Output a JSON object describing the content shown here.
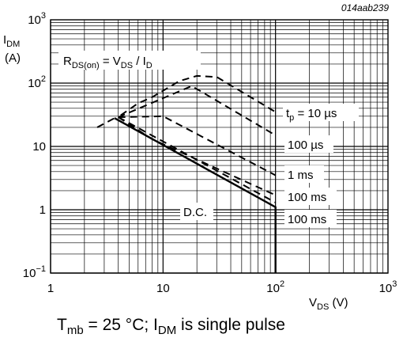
{
  "chart_data": {
    "type": "line",
    "figure_id": "014aab239",
    "xscale": "log",
    "yscale": "log",
    "xlim": [
      1,
      1000
    ],
    "ylim": [
      0.1,
      1000
    ],
    "x_ticks": [
      "1",
      "10",
      "10²",
      "10³"
    ],
    "y_ticks": [
      "10⁻¹",
      "1",
      "10",
      "10²",
      "10³"
    ],
    "x_tick_values": [
      1,
      10,
      100,
      1000
    ],
    "y_tick_values": [
      0.1,
      1,
      10,
      100,
      1000
    ],
    "ylabel_main": "I",
    "ylabel_sub": "DM",
    "ylabel_unit": "(A)",
    "xlabel_main": "V",
    "xlabel_sub": "DS",
    "xlabel_unit": " (V)",
    "grid": true,
    "rds_label": {
      "a": "R",
      "a_sub": "DS(on)",
      "b": " = V",
      "b_sub": "DS",
      "c": " / I",
      "c_sub": "D"
    },
    "rds_limit": [
      [
        2.6,
        20
      ],
      [
        3.7,
        28
      ]
    ],
    "series": [
      {
        "name": "tp = 10 µs",
        "style": "dashed",
        "points": [
          [
            4.2,
            31
          ],
          [
            6,
            48
          ],
          [
            8,
            60
          ],
          [
            14,
            108
          ],
          [
            20,
            130
          ],
          [
            30,
            125
          ],
          [
            100,
            35
          ]
        ]
      },
      {
        "name": "100 µs",
        "style": "dashed",
        "points": [
          [
            4,
            29
          ],
          [
            18,
            90
          ],
          [
            100,
            15
          ]
        ]
      },
      {
        "name": "1 ms",
        "style": "dashed",
        "points": [
          [
            4,
            29
          ],
          [
            10,
            30
          ],
          [
            100,
            3.5
          ]
        ]
      },
      {
        "name": "100 ms",
        "style": "dashed",
        "points": [
          [
            4,
            29
          ],
          [
            8,
            13
          ],
          [
            100,
            1.7
          ]
        ]
      },
      {
        "name": "100 ms",
        "style": "dashed",
        "points": [
          [
            4,
            29
          ],
          [
            100,
            1.3
          ]
        ]
      },
      {
        "name": "D.C.",
        "style": "solid",
        "points": [
          [
            3.7,
            28
          ],
          [
            100,
            1.1
          ],
          [
            100,
            0.1
          ]
        ]
      }
    ],
    "labels": [
      {
        "text_main": "t",
        "text_sub": "p",
        "text_rest": " = 10 µs",
        "series": 0
      },
      {
        "text_main": "100 µs",
        "series": 1
      },
      {
        "text_main": "1 ms",
        "series": 2
      },
      {
        "text_main": "100 ms",
        "series": 3
      },
      {
        "text_main": "100 ms",
        "series": 4
      },
      {
        "text_main": "D.C.",
        "series": 5
      }
    ]
  },
  "caption": {
    "t": "T",
    "t_sub": "mb",
    "mid": " = 25 °C; I",
    "i_sub": "DM",
    "end": " is single pulse"
  }
}
